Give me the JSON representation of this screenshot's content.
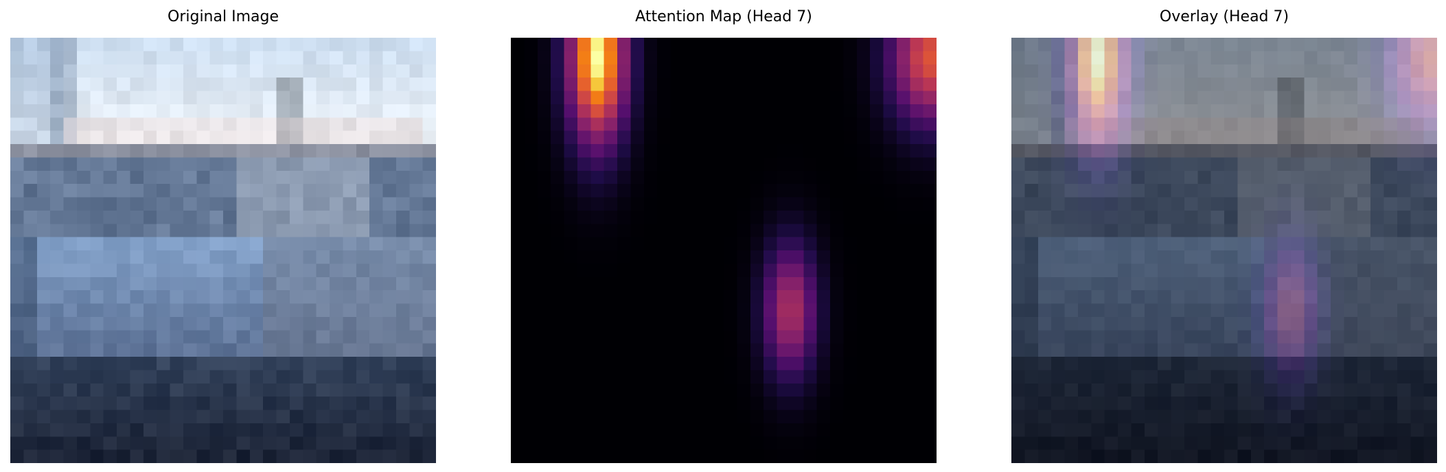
{
  "figure": {
    "panels": [
      {
        "id": "original",
        "title": "Original Image"
      },
      {
        "id": "attention",
        "title": "Attention Map (Head 7)"
      },
      {
        "id": "overlay",
        "title": "Overlay (Head 7)"
      }
    ]
  },
  "colors": {
    "background": "#ffffff",
    "colormap": "inferno",
    "sky": "#dfe8f2",
    "water": "#1e2a3f",
    "boat_hull": "#8fa6c4"
  }
}
